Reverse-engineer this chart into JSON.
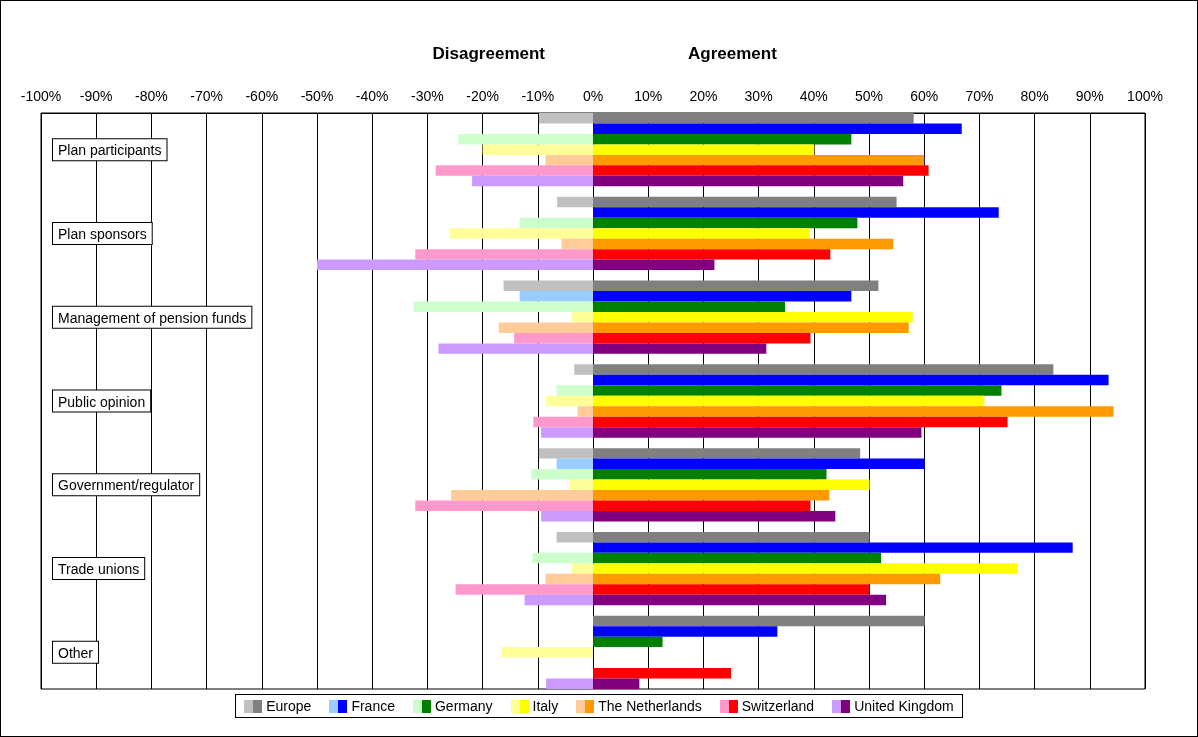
{
  "chart_data": {
    "type": "bar",
    "orientation": "horizontal",
    "stacked": true,
    "grid": "x",
    "legend": "bottom",
    "annotations": [
      "Disagreement",
      "Agreement"
    ],
    "categories": [
      null,
      null,
      null,
      "Plan participants",
      null,
      null,
      null,
      null,
      null,
      null,
      null,
      "Plan sponsors",
      null,
      null,
      null,
      null,
      null,
      null,
      null,
      "Management of pension funds",
      null,
      null,
      null,
      null,
      null,
      null,
      null,
      "Public opinion",
      null,
      null,
      null,
      null,
      null,
      null,
      null,
      "Government/regulator",
      null,
      null,
      null,
      null,
      null,
      null,
      null,
      "Trade unions",
      null,
      null,
      null,
      null,
      null,
      null,
      null,
      "Other",
      null,
      null,
      null
    ],
    "xlim": [
      -100,
      100
    ],
    "xticks": [
      {
        "value": -100,
        "label": "-100%"
      },
      {
        "value": -90,
        "label": "-90%"
      },
      {
        "value": -80,
        "label": "-80%"
      },
      {
        "value": -70,
        "label": "-70%"
      },
      {
        "value": -60,
        "label": "-60%"
      },
      {
        "value": -50,
        "label": "-50%"
      },
      {
        "value": -40,
        "label": "-40%"
      },
      {
        "value": -30,
        "label": "-30%"
      },
      {
        "value": -20,
        "label": "-20%"
      },
      {
        "value": -10,
        "label": "-10%"
      },
      {
        "value": 0,
        "label": "0%"
      },
      {
        "value": 10,
        "label": "10%"
      },
      {
        "value": 20,
        "label": "20%"
      },
      {
        "value": 30,
        "label": "30%"
      },
      {
        "value": 40,
        "label": "40%"
      },
      {
        "value": 50,
        "label": "50%"
      },
      {
        "value": 60,
        "label": "60%"
      },
      {
        "value": 70,
        "label": "70%"
      },
      {
        "value": 80,
        "label": "80%"
      },
      {
        "value": 90,
        "label": "90%"
      },
      {
        "value": 100,
        "label": "100%"
      }
    ],
    "series": [
      {
        "color": "#c0c0c0",
        "values": [
          -9.8,
          null,
          null,
          null,
          null,
          null,
          null,
          null,
          -6.5,
          null,
          null,
          null,
          null,
          null,
          null,
          null,
          -16.2,
          null,
          null,
          null,
          null,
          null,
          null,
          null,
          -3.4,
          null,
          null,
          null,
          null,
          null,
          null,
          null,
          -9.8,
          null,
          null,
          null,
          null,
          null,
          null,
          null,
          -6.6,
          null,
          null,
          null,
          null,
          null,
          null,
          null,
          null,
          null,
          null,
          null,
          null,
          null,
          null
        ]
      },
      {
        "name": "Europe",
        "color": "#808080",
        "values": [
          58.1,
          null,
          null,
          null,
          null,
          null,
          null,
          null,
          55.0,
          null,
          null,
          null,
          null,
          null,
          null,
          null,
          51.7,
          null,
          null,
          null,
          null,
          null,
          null,
          null,
          83.4,
          null,
          null,
          null,
          null,
          null,
          null,
          null,
          48.4,
          null,
          null,
          null,
          null,
          null,
          null,
          null,
          50.1,
          null,
          null,
          null,
          null,
          null,
          null,
          null,
          60.1,
          null,
          null,
          null,
          null,
          null,
          null
        ]
      },
      {
        "color": "#99ccff",
        "values": [
          null,
          null,
          null,
          null,
          null,
          null,
          null,
          null,
          null,
          null,
          null,
          null,
          null,
          null,
          null,
          null,
          null,
          -13.3,
          null,
          null,
          null,
          null,
          null,
          null,
          null,
          null,
          null,
          null,
          null,
          null,
          null,
          null,
          null,
          -6.6,
          null,
          null,
          null,
          null,
          null,
          null,
          null,
          null,
          null,
          null,
          null,
          null,
          null,
          null,
          null,
          null,
          null,
          null,
          null,
          null,
          null
        ]
      },
      {
        "name": "France",
        "color": "#0000ff",
        "values": [
          null,
          66.8,
          null,
          null,
          null,
          null,
          null,
          null,
          null,
          73.5,
          null,
          null,
          null,
          null,
          null,
          null,
          null,
          46.8,
          null,
          null,
          null,
          null,
          null,
          null,
          null,
          93.4,
          null,
          null,
          null,
          null,
          null,
          null,
          null,
          60.1,
          null,
          null,
          null,
          null,
          null,
          null,
          null,
          86.9,
          null,
          null,
          null,
          null,
          null,
          null,
          null,
          33.4,
          null,
          null,
          null,
          null,
          null
        ]
      },
      {
        "color": "#ccffcc",
        "values": [
          null,
          null,
          -24.4,
          null,
          null,
          null,
          null,
          null,
          null,
          null,
          -13.2,
          null,
          null,
          null,
          null,
          null,
          null,
          null,
          -32.5,
          null,
          null,
          null,
          null,
          null,
          null,
          null,
          -6.6,
          null,
          null,
          null,
          null,
          null,
          null,
          null,
          -11.2,
          null,
          null,
          null,
          null,
          null,
          null,
          null,
          -11.0,
          null,
          null,
          null,
          null,
          null,
          null,
          null,
          null,
          null,
          null,
          null,
          null
        ]
      },
      {
        "name": "Germany",
        "color": "#008000",
        "values": [
          null,
          null,
          46.8,
          null,
          null,
          null,
          null,
          null,
          null,
          null,
          47.9,
          null,
          null,
          null,
          null,
          null,
          null,
          null,
          34.8,
          null,
          null,
          null,
          null,
          null,
          null,
          null,
          74.0,
          null,
          null,
          null,
          null,
          null,
          null,
          null,
          42.3,
          null,
          null,
          null,
          null,
          null,
          null,
          null,
          52.2,
          null,
          null,
          null,
          null,
          null,
          null,
          null,
          12.6,
          null,
          null,
          null,
          null
        ]
      },
      {
        "color": "#ffff99",
        "values": [
          null,
          null,
          null,
          -20.0,
          null,
          null,
          null,
          null,
          null,
          null,
          null,
          -26.0,
          null,
          null,
          null,
          null,
          null,
          null,
          null,
          -3.9,
          null,
          null,
          null,
          null,
          null,
          null,
          null,
          -8.5,
          null,
          null,
          null,
          null,
          null,
          null,
          null,
          -4.3,
          null,
          null,
          null,
          null,
          null,
          null,
          null,
          -3.9,
          null,
          null,
          null,
          null,
          null,
          null,
          null,
          -16.6,
          null,
          null,
          null
        ]
      },
      {
        "name": "Italy",
        "color": "#ffff00",
        "values": [
          null,
          null,
          null,
          40.1,
          null,
          null,
          null,
          null,
          null,
          null,
          null,
          39.2,
          null,
          null,
          null,
          null,
          null,
          null,
          null,
          57.9,
          null,
          null,
          null,
          null,
          null,
          null,
          null,
          70.9,
          null,
          null,
          null,
          null,
          null,
          null,
          null,
          50.1,
          null,
          null,
          null,
          null,
          null,
          null,
          null,
          76.9,
          null,
          null,
          null,
          null,
          null,
          null,
          null,
          null,
          null,
          null,
          null
        ]
      },
      {
        "color": "#ffcc99",
        "values": [
          null,
          null,
          null,
          null,
          -8.6,
          null,
          null,
          null,
          null,
          null,
          null,
          null,
          -5.7,
          null,
          null,
          null,
          null,
          null,
          null,
          null,
          -17.1,
          null,
          null,
          null,
          null,
          null,
          null,
          null,
          -2.8,
          null,
          null,
          null,
          null,
          null,
          null,
          null,
          -25.7,
          null,
          null,
          null,
          null,
          null,
          null,
          null,
          -8.6,
          null,
          null,
          null,
          null,
          null,
          null,
          null,
          null,
          null,
          null
        ]
      },
      {
        "name": "The Netherlands",
        "color": "#ff9900",
        "values": [
          null,
          null,
          null,
          null,
          60.0,
          null,
          null,
          null,
          null,
          null,
          null,
          null,
          54.4,
          null,
          null,
          null,
          null,
          null,
          null,
          null,
          57.2,
          null,
          null,
          null,
          null,
          null,
          null,
          null,
          94.3,
          null,
          null,
          null,
          null,
          null,
          null,
          null,
          42.8,
          null,
          null,
          null,
          null,
          null,
          null,
          null,
          62.9,
          null,
          null,
          null,
          null,
          null,
          null,
          null,
          null,
          null,
          null
        ]
      },
      {
        "color": "#ff99cc",
        "values": [
          null,
          null,
          null,
          null,
          null,
          -28.5,
          null,
          null,
          null,
          null,
          null,
          null,
          null,
          -32.2,
          null,
          null,
          null,
          null,
          null,
          null,
          null,
          -14.3,
          null,
          null,
          null,
          null,
          null,
          null,
          null,
          -10.8,
          null,
          null,
          null,
          null,
          null,
          null,
          null,
          -32.2,
          null,
          null,
          null,
          null,
          null,
          null,
          null,
          -24.9,
          null,
          null,
          null,
          null,
          null,
          null,
          null,
          null,
          null
        ]
      },
      {
        "name": "Switzerland",
        "color": "#ff0000",
        "values": [
          null,
          null,
          null,
          null,
          null,
          60.8,
          null,
          null,
          null,
          null,
          null,
          null,
          null,
          43.0,
          null,
          null,
          null,
          null,
          null,
          null,
          null,
          39.4,
          null,
          null,
          null,
          null,
          null,
          null,
          null,
          75.1,
          null,
          null,
          null,
          null,
          null,
          null,
          null,
          39.4,
          null,
          null,
          null,
          null,
          null,
          null,
          null,
          50.1,
          null,
          null,
          null,
          null,
          null,
          null,
          null,
          25.0,
          null
        ]
      },
      {
        "color": "#cc99ff",
        "values": [
          null,
          null,
          null,
          null,
          null,
          null,
          -21.9,
          null,
          null,
          null,
          null,
          null,
          null,
          null,
          -50.0,
          null,
          null,
          null,
          null,
          null,
          null,
          null,
          -28.0,
          null,
          null,
          null,
          null,
          null,
          null,
          null,
          -9.4,
          null,
          null,
          null,
          null,
          null,
          null,
          null,
          -9.4,
          null,
          null,
          null,
          null,
          null,
          null,
          null,
          -12.4,
          null,
          null,
          null,
          null,
          null,
          null,
          null,
          -8.5
        ]
      },
      {
        "name": "United Kingdom",
        "color": "#800080",
        "values": [
          null,
          null,
          null,
          null,
          null,
          null,
          56.2,
          null,
          null,
          null,
          null,
          null,
          null,
          null,
          22.0,
          null,
          null,
          null,
          null,
          null,
          null,
          null,
          31.4,
          null,
          null,
          null,
          null,
          null,
          null,
          null,
          59.5,
          null,
          null,
          null,
          null,
          null,
          null,
          null,
          43.9,
          null,
          null,
          null,
          null,
          null,
          null,
          null,
          53.1,
          null,
          null,
          null,
          null,
          null,
          null,
          null,
          8.4
        ]
      }
    ]
  }
}
